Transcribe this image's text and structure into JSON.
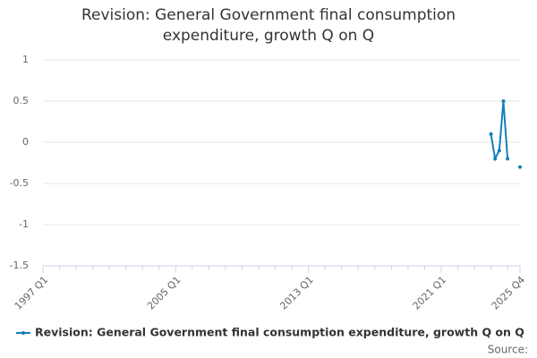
{
  "chart_data": {
    "type": "line",
    "title": "Revision: General Government final consumption expenditure, growth Q on Q",
    "categories": [
      "1997 Q1",
      null,
      null,
      null,
      null,
      null,
      null,
      null,
      null,
      null,
      null,
      null,
      null,
      null,
      null,
      null,
      null,
      null,
      null,
      null,
      null,
      null,
      null,
      null,
      null,
      null,
      null,
      null,
      null,
      null,
      null,
      null,
      "2005 Q1",
      null,
      null,
      null,
      null,
      null,
      null,
      null,
      null,
      null,
      null,
      null,
      null,
      null,
      null,
      null,
      null,
      null,
      null,
      null,
      null,
      null,
      null,
      null,
      null,
      null,
      null,
      null,
      null,
      null,
      null,
      null,
      "2013 Q1",
      null,
      null,
      null,
      null,
      null,
      null,
      null,
      null,
      null,
      null,
      null,
      null,
      null,
      null,
      null,
      null,
      null,
      null,
      null,
      null,
      null,
      null,
      null,
      null,
      null,
      null,
      null,
      null,
      null,
      null,
      null,
      "2021 Q1",
      null,
      null,
      null,
      null,
      null,
      null,
      null,
      null,
      null,
      null,
      null,
      null,
      null,
      null,
      null,
      null,
      null,
      null,
      "2025 Q4"
    ],
    "series": [
      {
        "name": "Revision: General Government final consumption expenditure, growth Q on Q",
        "color": "#1380b9",
        "values": [
          null,
          null,
          null,
          null,
          null,
          null,
          null,
          null,
          null,
          null,
          null,
          null,
          null,
          null,
          null,
          null,
          null,
          null,
          null,
          null,
          null,
          null,
          null,
          null,
          null,
          null,
          null,
          null,
          null,
          null,
          null,
          null,
          null,
          null,
          null,
          null,
          null,
          null,
          null,
          null,
          null,
          null,
          null,
          null,
          null,
          null,
          null,
          null,
          null,
          null,
          null,
          null,
          null,
          null,
          null,
          null,
          null,
          null,
          null,
          null,
          null,
          null,
          null,
          null,
          null,
          null,
          null,
          null,
          null,
          null,
          null,
          null,
          null,
          null,
          null,
          null,
          null,
          null,
          null,
          null,
          null,
          null,
          null,
          null,
          null,
          null,
          null,
          null,
          null,
          null,
          null,
          null,
          null,
          null,
          null,
          null,
          null,
          null,
          null,
          null,
          null,
          null,
          null,
          null,
          null,
          null,
          null,
          null,
          0.1,
          -0.2,
          -0.1,
          0.5,
          -0.2,
          null,
          null,
          -0.3
        ]
      }
    ],
    "ylim": [
      -1.5,
      1
    ],
    "yticks": [
      -1.5,
      -1,
      -0.5,
      0,
      0.5,
      1
    ],
    "grid": true,
    "source": "Source:"
  }
}
